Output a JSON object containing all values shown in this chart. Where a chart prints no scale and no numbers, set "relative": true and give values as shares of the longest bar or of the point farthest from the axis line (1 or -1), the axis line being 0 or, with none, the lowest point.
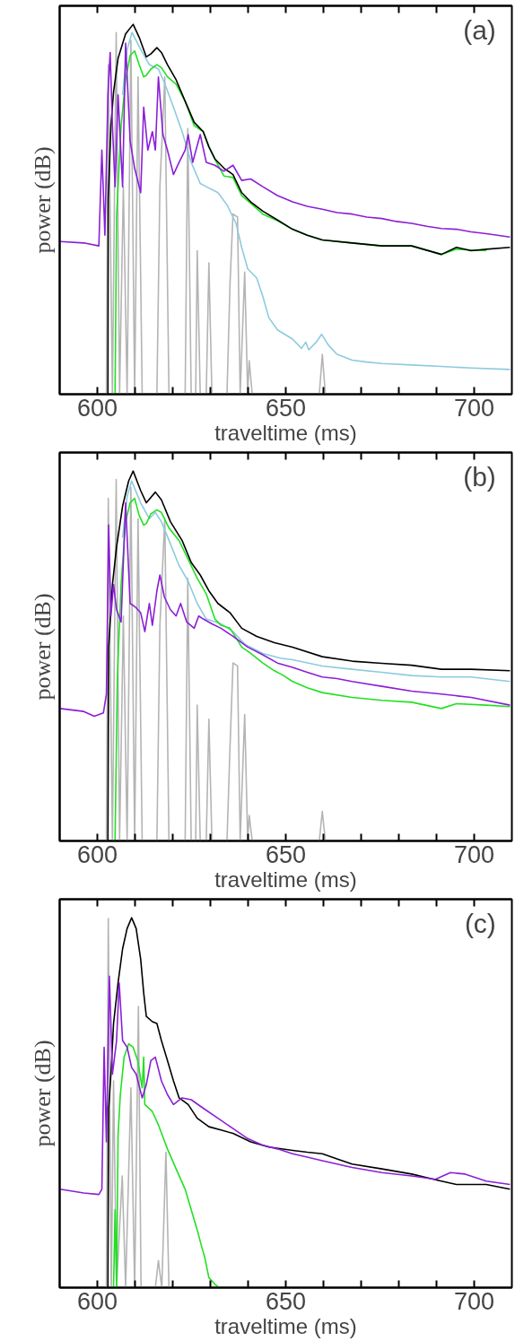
{
  "chart_data": [
    {
      "type": "line",
      "relative": true,
      "xlabel": "traveltime (ms)",
      "ylabel": "power (dB)",
      "annotations": [
        "(a)"
      ],
      "xlim": [
        590,
        710
      ],
      "xticks": [
        600,
        {
          "value": 610,
          "label": null
        },
        {
          "value": 620,
          "label": null
        },
        {
          "value": 630,
          "label": null
        },
        {
          "value": 640,
          "label": null
        },
        650,
        {
          "value": 660,
          "label": null
        },
        {
          "value": 670,
          "label": null
        },
        {
          "value": 680,
          "label": null
        },
        {
          "value": 690,
          "label": null
        },
        700
      ],
      "tick_labels": "x",
      "line_style": "solid",
      "series": [
        {
          "color": "#b4b4b4",
          "x": [
            602.4,
            602.9,
            604.0,
            605.0,
            605.9,
            606.9,
            607.9,
            608.9,
            609.9,
            610.8,
            611.9,
            615.8,
            616.6,
            617.9,
            619.0,
            623.3,
            624.0,
            624.9,
            626.1,
            626.5,
            627.3,
            628.9,
            629.6,
            630.4,
            634.4,
            635.2,
            636.0,
            637.2,
            637.9,
            639.1,
            639.9,
            640.3,
            641.1,
            658.9,
            659.7,
            660.5
          ],
          "values": [
            0,
            0.891,
            0,
            0.978,
            0,
            0.561,
            0,
            0.957,
            0,
            0.858,
            0,
            0,
            0.561,
            0.858,
            0,
            0,
            0.718,
            0,
            0,
            0.388,
            0,
            0,
            0.355,
            0,
            0,
            0.297,
            0.487,
            0.479,
            0,
            0.33,
            0,
            0.091,
            0,
            0,
            0.108,
            0
          ]
        },
        {
          "color": "#8ccbde",
          "x": [
            606.7,
            607.9,
            609.2,
            611.5,
            613.8,
            616.2,
            617.8,
            620.2,
            622.5,
            624.9,
            627.3,
            628.9,
            632.0,
            634.4,
            636.8,
            638.3,
            639.9,
            642.3,
            643.9,
            645.5,
            647.8,
            651.8,
            654.2,
            655.3,
            656.1,
            658.1,
            659.5,
            661.3,
            663.6,
            667.6,
            671.5,
            675.5,
            683.4,
            691.3,
            699.2,
            709.5
          ],
          "values": [
            0.809,
            0.932,
            0.978,
            0.932,
            0.891,
            0.879,
            0.842,
            0.776,
            0.71,
            0.627,
            0.57,
            0.561,
            0.545,
            0.512,
            0.462,
            0.397,
            0.339,
            0.314,
            0.265,
            0.207,
            0.174,
            0.149,
            0.124,
            0.141,
            0.12,
            0.141,
            0.162,
            0.133,
            0.108,
            0.092,
            0.087,
            0.083,
            0.079,
            0.075,
            0.071,
            0.067
          ]
        },
        {
          "color": "#22e022",
          "x": [
            604.7,
            605.1,
            606.3,
            607.5,
            608.7,
            609.9,
            611.1,
            612.3,
            613.0,
            614.2,
            615.8,
            617.0,
            618.6,
            620.9,
            623.3,
            625.7,
            628.1,
            629.6,
            631.6,
            633.6,
            636.0,
            638.3,
            640.7,
            643.9,
            647.8,
            651.8,
            655.7,
            659.7,
            667.6,
            675.5,
            683.4,
            691.3,
            695.3,
            703.2
          ],
          "values": [
            0,
            0.479,
            0.726,
            0.85,
            0.916,
            0.928,
            0.891,
            0.858,
            0.862,
            0.879,
            0.891,
            0.883,
            0.858,
            0.838,
            0.792,
            0.726,
            0.71,
            0.669,
            0.627,
            0.59,
            0.586,
            0.537,
            0.516,
            0.487,
            0.469,
            0.446,
            0.43,
            0.417,
            0.409,
            0.401,
            0.401,
            0.378,
            0.392,
            0.388
          ]
        },
        {
          "color": "#000000",
          "x": [
            602.8,
            602.9,
            603.6,
            604.3,
            605.5,
            607.5,
            609.5,
            611.1,
            613.0,
            614.2,
            615.8,
            617.0,
            618.6,
            620.9,
            623.3,
            625.7,
            628.1,
            629.6,
            631.2,
            633.6,
            636.0,
            638.3,
            640.7,
            643.9,
            647.8,
            651.8,
            655.7,
            659.7,
            667.6,
            675.5,
            683.4,
            691.3,
            695.3,
            699.2,
            703.2,
            709.5
          ],
          "values": [
            0,
            0.528,
            0.726,
            0.817,
            0.908,
            0.974,
            1.0,
            0.965,
            0.912,
            0.92,
            0.937,
            0.924,
            0.891,
            0.85,
            0.792,
            0.735,
            0.71,
            0.669,
            0.636,
            0.611,
            0.594,
            0.545,
            0.52,
            0.495,
            0.471,
            0.446,
            0.43,
            0.417,
            0.409,
            0.401,
            0.401,
            0.378,
            0.397,
            0.388,
            0.392,
            0.397
          ]
        },
        {
          "color": "#8a1fd6",
          "x": [
            590.1,
            596.4,
            600.4,
            601.2,
            602.0,
            602.8,
            603.4,
            604.0,
            604.7,
            605.5,
            606.7,
            607.5,
            608.7,
            609.9,
            611.5,
            612.3,
            613.4,
            614.6,
            615.4,
            616.2,
            617.4,
            618.6,
            620.2,
            621.7,
            623.3,
            624.1,
            625.3,
            627.3,
            628.9,
            631.2,
            633.6,
            636.0,
            638.3,
            640.7,
            643.9,
            647.8,
            651.8,
            655.7,
            659.7,
            663.6,
            667.6,
            671.5,
            675.5,
            679.4,
            683.4,
            687.4,
            691.3,
            695.3,
            699.2,
            703.2,
            709.5
          ],
          "values": [
            0.413,
            0.409,
            0.401,
            0.66,
            0.43,
            0.809,
            0.924,
            0.726,
            0.561,
            0.809,
            0.561,
            0.949,
            0.685,
            0.611,
            0.545,
            0.776,
            0.66,
            0.71,
            0.66,
            0.858,
            0.702,
            0.66,
            0.594,
            0.627,
            0.66,
            0.702,
            0.627,
            0.702,
            0.627,
            0.619,
            0.603,
            0.619,
            0.578,
            0.582,
            0.561,
            0.537,
            0.52,
            0.508,
            0.5,
            0.491,
            0.487,
            0.479,
            0.475,
            0.467,
            0.462,
            0.454,
            0.448,
            0.446,
            0.439,
            0.434,
            0.425
          ]
        }
      ]
    },
    {
      "type": "line",
      "relative": true,
      "xlabel": "traveltime (ms)",
      "ylabel": "power (dB)",
      "annotations": [
        "(b)"
      ],
      "xlim": [
        590,
        710
      ],
      "xticks": [
        600,
        {
          "value": 610,
          "label": null
        },
        {
          "value": 620,
          "label": null
        },
        {
          "value": 630,
          "label": null
        },
        {
          "value": 640,
          "label": null
        },
        650,
        {
          "value": 660,
          "label": null
        },
        {
          "value": 670,
          "label": null
        },
        {
          "value": 680,
          "label": null
        },
        {
          "value": 690,
          "label": null
        },
        700
      ],
      "tick_labels": "x",
      "line_style": "solid",
      "series": [
        {
          "color": "#b4b4b4",
          "x": [
            602.4,
            602.9,
            604.0,
            605.0,
            605.9,
            606.9,
            607.9,
            608.9,
            609.9,
            610.8,
            611.9,
            615.8,
            616.6,
            617.9,
            619.0,
            623.3,
            624.0,
            624.9,
            626.1,
            626.5,
            627.3,
            628.9,
            629.6,
            630.4,
            634.4,
            635.2,
            636.0,
            637.2,
            637.9,
            639.1,
            639.9,
            640.3,
            641.1,
            658.9,
            659.7,
            660.5
          ],
          "values": [
            0,
            0.926,
            0,
            0.977,
            0,
            0.608,
            0,
            0.956,
            0,
            0.871,
            0,
            0,
            0.583,
            0.871,
            0,
            0,
            0.71,
            0,
            0,
            0.367,
            0,
            0,
            0.329,
            0,
            0,
            0.253,
            0.481,
            0.473,
            0,
            0.342,
            0,
            0.069,
            0,
            0,
            0.08,
            0
          ]
        },
        {
          "color": "#8ccbde",
          "x": [
            606.7,
            607.9,
            609.1,
            611.5,
            613.8,
            615.4,
            617.0,
            619.4,
            621.7,
            624.1,
            626.5,
            628.9,
            632.8,
            636.0,
            639.1,
            643.9,
            648.6,
            651.8,
            659.7,
            667.6,
            675.5,
            683.4,
            691.3,
            699.2,
            709.5
          ],
          "values": [
            0.82,
            0.931,
            0.973,
            0.914,
            0.871,
            0.888,
            0.863,
            0.803,
            0.744,
            0.702,
            0.642,
            0.6,
            0.587,
            0.566,
            0.532,
            0.507,
            0.494,
            0.49,
            0.473,
            0.464,
            0.456,
            0.447,
            0.443,
            0.443,
            0.431
          ]
        },
        {
          "color": "#22e022",
          "x": [
            604.7,
            605.3,
            606.3,
            607.5,
            608.7,
            609.9,
            611.1,
            612.3,
            613.0,
            614.2,
            615.8,
            617.0,
            619.0,
            621.7,
            624.1,
            626.5,
            628.9,
            631.2,
            632.8,
            635.2,
            636.8,
            638.3,
            640.7,
            643.9,
            647.0,
            649.4,
            651.8,
            655.7,
            659.7,
            667.6,
            675.5,
            683.4,
            691.3,
            695.3,
            703.2,
            709.5
          ],
          "values": [
            0,
            0.439,
            0.693,
            0.863,
            0.914,
            0.926,
            0.88,
            0.854,
            0.858,
            0.884,
            0.895,
            0.888,
            0.846,
            0.812,
            0.761,
            0.71,
            0.668,
            0.6,
            0.583,
            0.575,
            0.549,
            0.524,
            0.507,
            0.481,
            0.46,
            0.447,
            0.431,
            0.414,
            0.401,
            0.388,
            0.38,
            0.375,
            0.358,
            0.371,
            0.367,
            0.363
          ]
        },
        {
          "color": "#000000",
          "x": [
            602.8,
            603.0,
            604.0,
            605.1,
            606.7,
            608.3,
            609.5,
            611.5,
            613.0,
            615.4,
            617.0,
            619.4,
            622.5,
            624.9,
            627.3,
            629.6,
            632.0,
            635.2,
            638.3,
            642.3,
            647.0,
            651.8,
            659.7,
            667.6,
            675.5,
            683.4,
            691.3,
            699.2,
            709.5
          ],
          "values": [
            0,
            0.524,
            0.693,
            0.795,
            0.905,
            0.973,
            1.0,
            0.947,
            0.914,
            0.943,
            0.922,
            0.863,
            0.812,
            0.753,
            0.719,
            0.676,
            0.642,
            0.617,
            0.575,
            0.553,
            0.536,
            0.524,
            0.498,
            0.486,
            0.48,
            0.475,
            0.464,
            0.464,
            0.46
          ]
        },
        {
          "color": "#8a1fd6",
          "x": [
            590.1,
            596.4,
            599.2,
            601.6,
            602.4,
            603.0,
            603.6,
            604.3,
            605.1,
            606.3,
            607.5,
            608.7,
            609.9,
            611.5,
            612.6,
            613.8,
            614.6,
            615.8,
            616.6,
            617.8,
            619.4,
            620.9,
            622.1,
            623.7,
            625.7,
            626.9,
            628.1,
            630.4,
            632.8,
            636.0,
            639.9,
            643.9,
            647.8,
            651.8,
            655.7,
            659.7,
            663.6,
            667.6,
            675.5,
            683.4,
            691.3,
            699.2,
            709.5
          ],
          "values": [
            0.358,
            0.35,
            0.337,
            0.346,
            0.397,
            0.854,
            0.608,
            0.693,
            0.625,
            0.592,
            0.914,
            0.642,
            0.634,
            0.617,
            0.566,
            0.642,
            0.583,
            0.676,
            0.719,
            0.659,
            0.625,
            0.608,
            0.642,
            0.592,
            0.575,
            0.608,
            0.6,
            0.587,
            0.575,
            0.553,
            0.524,
            0.503,
            0.481,
            0.469,
            0.456,
            0.443,
            0.439,
            0.431,
            0.418,
            0.405,
            0.397,
            0.388,
            0.367
          ]
        }
      ]
    },
    {
      "type": "line",
      "relative": true,
      "xlabel": "traveltime (ms)",
      "ylabel": "power (dB)",
      "annotations": [
        "(c)"
      ],
      "xlim": [
        590,
        710
      ],
      "xticks": [
        600,
        {
          "value": 610,
          "label": null
        },
        {
          "value": 620,
          "label": null
        },
        {
          "value": 630,
          "label": null
        },
        {
          "value": 640,
          "label": null
        },
        650,
        {
          "value": 660,
          "label": null
        },
        {
          "value": 670,
          "label": null
        },
        {
          "value": 680,
          "label": null
        },
        {
          "value": 690,
          "label": null
        },
        700
      ],
      "tick_labels": "x",
      "line_style": "solid",
      "series": [
        {
          "color": "#b4b4b4",
          "x": [
            602.4,
            602.9,
            603.7,
            604.3,
            605.1,
            606.6,
            607.5,
            608.9,
            609.9,
            610.9,
            611.6,
            615.4,
            616.2,
            617.1,
            618.2,
            619.0
          ],
          "values": [
            0,
            0.998,
            0,
            0.559,
            0,
            0.302,
            0,
            0.54,
            0,
            0.76,
            0,
            0,
            0.073,
            0,
            0.366,
            0
          ]
        },
        {
          "color": "#22e022",
          "x": [
            604.3,
            604.7,
            605.1,
            605.5,
            606.1,
            607.1,
            608.3,
            609.5,
            610.7,
            611.9,
            612.3,
            612.6,
            614.6,
            616.2,
            618.6,
            620.9,
            623.3,
            624.9,
            626.5,
            627.7,
            628.5,
            629.6,
            631.2,
            632.4
          ],
          "values": [
            0,
            0.211,
            0,
            0.412,
            0.522,
            0.623,
            0.659,
            0.65,
            0.614,
            0.54,
            0.623,
            0.495,
            0.476,
            0.44,
            0.375,
            0.321,
            0.266,
            0.211,
            0.156,
            0.11,
            0.082,
            0.027,
            0.009,
            0
          ]
        },
        {
          "color": "#000000",
          "x": [
            602.8,
            603.0,
            603.6,
            604.3,
            605.5,
            606.7,
            607.9,
            609.1,
            610.3,
            611.5,
            612.3,
            613.0,
            614.6,
            615.8,
            617.0,
            618.6,
            620.2,
            621.7,
            624.1,
            626.5,
            629.6,
            632.8,
            636.0,
            640.7,
            645.5,
            651.8,
            655.7,
            659.7,
            663.6,
            667.6,
            675.5,
            683.4,
            691.3,
            695.3,
            703.2,
            709.5
          ],
          "values": [
            0,
            0.485,
            0.577,
            0.714,
            0.824,
            0.916,
            0.971,
            1.0,
            0.971,
            0.888,
            0.797,
            0.733,
            0.719,
            0.714,
            0.668,
            0.614,
            0.559,
            0.513,
            0.495,
            0.458,
            0.435,
            0.426,
            0.417,
            0.394,
            0.38,
            0.371,
            0.366,
            0.362,
            0.348,
            0.334,
            0.321,
            0.307,
            0.288,
            0.279,
            0.279,
            0.266
          ]
        },
        {
          "color": "#8a1fd6",
          "x": [
            590.1,
            596.4,
            600.4,
            601.2,
            601.8,
            602.4,
            603.2,
            604.0,
            605.1,
            605.8,
            606.7,
            607.9,
            609.1,
            610.3,
            611.9,
            613.0,
            614.2,
            615.4,
            617.0,
            618.6,
            620.2,
            622.5,
            624.9,
            628.1,
            632.0,
            636.0,
            639.9,
            643.9,
            647.8,
            651.8,
            655.7,
            659.7,
            667.6,
            675.5,
            683.4,
            689.7,
            693.7,
            697.6,
            703.2,
            709.5
          ],
          "values": [
            0.266,
            0.256,
            0.252,
            0.266,
            0.65,
            0.394,
            0.842,
            0.577,
            0.668,
            0.824,
            0.668,
            0.65,
            0.595,
            0.577,
            0.513,
            0.549,
            0.614,
            0.623,
            0.559,
            0.522,
            0.495,
            0.513,
            0.508,
            0.485,
            0.458,
            0.43,
            0.403,
            0.385,
            0.375,
            0.362,
            0.353,
            0.343,
            0.325,
            0.311,
            0.302,
            0.293,
            0.311,
            0.307,
            0.288,
            0.279
          ]
        }
      ]
    }
  ]
}
